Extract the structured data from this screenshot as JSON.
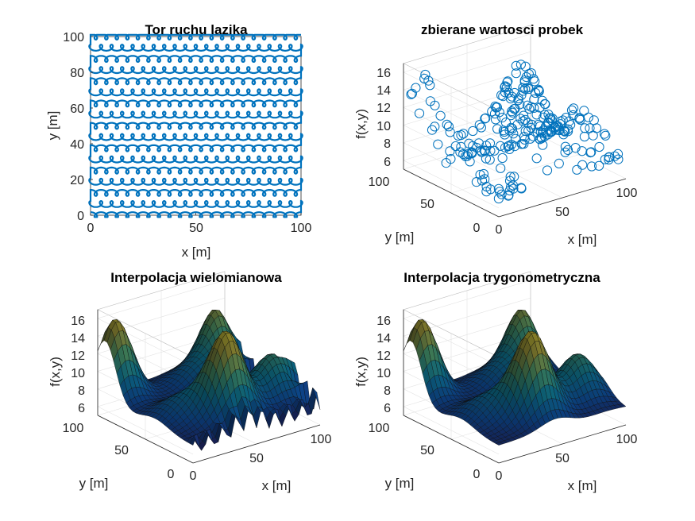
{
  "chart_data": [
    {
      "type": "line",
      "title": "Tor ruchu lazika",
      "xlabel": "x [m]",
      "ylabel": "y [m]",
      "xlim": [
        0,
        100
      ],
      "ylim": [
        0,
        100
      ],
      "xticks": [
        "0",
        "50",
        "100"
      ],
      "yticks": [
        "0",
        "20",
        "40",
        "60",
        "80",
        "100"
      ],
      "color": "#0072BD",
      "path": "looping raster sweep (rows every ~6.25 m)"
    },
    {
      "type": "scatter",
      "title": "zbierane wartosci probek",
      "xlabel": "x [m]",
      "ylabel": "y [m]",
      "zlabel": "f(x,y)",
      "xlim": [
        0,
        100
      ],
      "ylim": [
        0,
        100
      ],
      "zlim": [
        5,
        17
      ],
      "xticks": [
        "0",
        "50",
        "100"
      ],
      "yticks": [
        "0",
        "50",
        "100"
      ],
      "zticks": [
        "6",
        "8",
        "10",
        "12",
        "14",
        "16"
      ],
      "color": "#0072BD"
    },
    {
      "type": "heatmap",
      "title": "Interpolacja wielomianowa",
      "xlabel": "x [m]",
      "ylabel": "y [m]",
      "zlabel": "f(x,y)",
      "xlim": [
        0,
        100
      ],
      "ylim": [
        0,
        100
      ],
      "zlim": [
        5,
        17
      ],
      "xticks": [
        "0",
        "50",
        "100"
      ],
      "yticks": [
        "0",
        "50",
        "100"
      ],
      "zticks": [
        "6",
        "8",
        "10",
        "12",
        "14",
        "16"
      ]
    },
    {
      "type": "heatmap",
      "title": "Interpolacja trygonometryczna",
      "xlabel": "x [m]",
      "ylabel": "y [m]",
      "zlabel": "f(x,y)",
      "xlim": [
        0,
        100
      ],
      "ylim": [
        0,
        100
      ],
      "zlim": [
        5,
        17
      ],
      "xticks": [
        "0",
        "50",
        "100"
      ],
      "yticks": [
        "0",
        "50",
        "100"
      ],
      "zticks": [
        "6",
        "8",
        "10",
        "12",
        "14",
        "16"
      ]
    }
  ]
}
